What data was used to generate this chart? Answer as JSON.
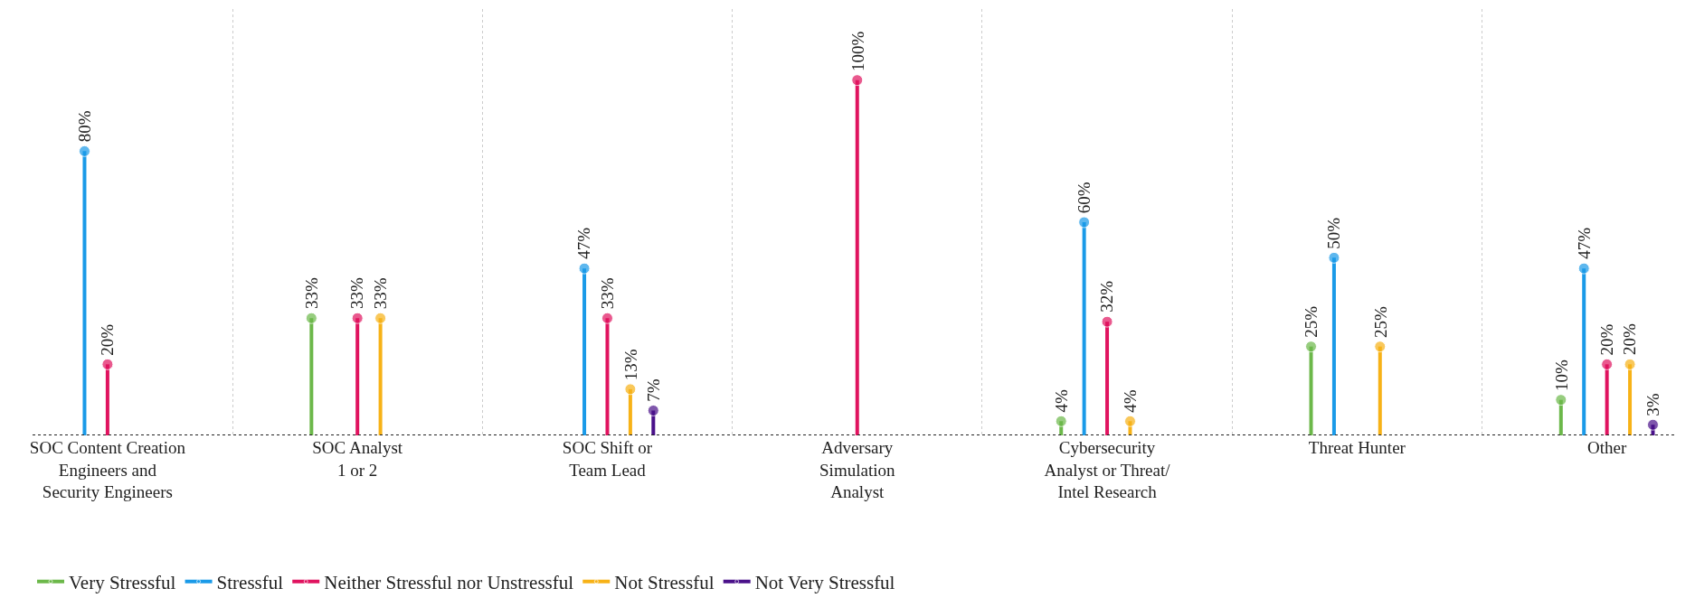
{
  "chart_data": {
    "type": "lollipop",
    "categories": [
      "SOC Content Creation\nEngineers and\nSecurity Engineers",
      "SOC Analyst\n1 or 2",
      "SOC Shift or\nTeam Lead",
      "Adversary\nSimulation\nAnalyst",
      "Cybersecurity\nAnalyst or Threat/\nIntel Research",
      "Threat Hunter",
      "Other"
    ],
    "series": [
      {
        "name": "Very Stressful",
        "color": "#6cb84a",
        "values": [
          null,
          33,
          null,
          null,
          4,
          25,
          10
        ],
        "value_labels": [
          null,
          "33%",
          null,
          null,
          "4%",
          "25%",
          "10%"
        ]
      },
      {
        "name": "Stressful",
        "color": "#1a9ae8",
        "values": [
          80,
          null,
          47,
          null,
          60,
          50,
          47
        ],
        "value_labels": [
          "80%",
          null,
          "47%",
          null,
          "60%",
          "50%",
          "47%"
        ]
      },
      {
        "name": "Neither Stressful nor Unstressful",
        "color": "#e0135f",
        "values": [
          20,
          33,
          33,
          100,
          32,
          null,
          20
        ],
        "value_labels": [
          "20%",
          "33%",
          "33%",
          "100%",
          "32%",
          null,
          "20%"
        ]
      },
      {
        "name": "Not Stressful",
        "color": "#f7b217",
        "values": [
          null,
          33,
          13,
          null,
          4,
          25,
          20
        ],
        "value_labels": [
          null,
          "33%",
          "13%",
          null,
          "4%",
          "25%",
          "20%"
        ]
      },
      {
        "name": "Not Very Stressful",
        "color": "#4a118a",
        "values": [
          null,
          null,
          7,
          null,
          null,
          null,
          3
        ],
        "value_labels": [
          null,
          null,
          "7%",
          null,
          null,
          null,
          "3%"
        ]
      }
    ],
    "grid": "x",
    "legend": "bottom",
    "marker": "circle"
  }
}
